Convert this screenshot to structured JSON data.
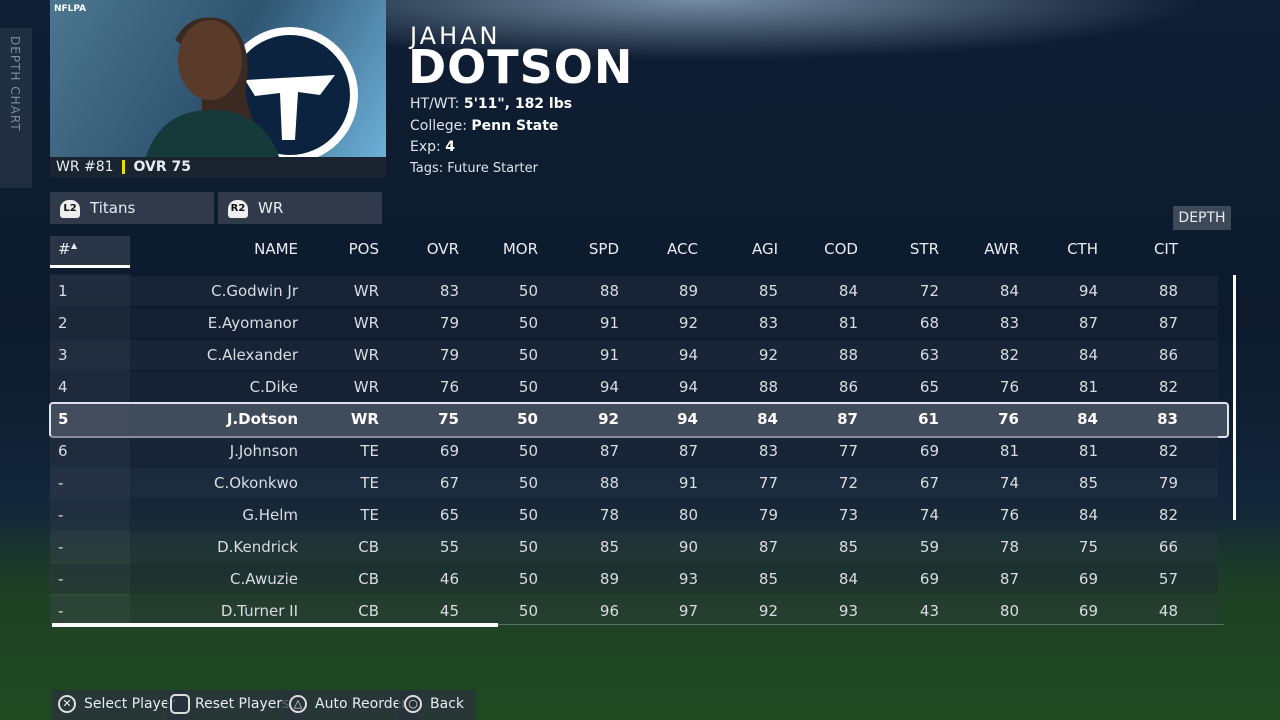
{
  "side_tab": "DEPTH CHART",
  "badge": "NFLPA",
  "player": {
    "first_name": "JAHAN",
    "last_name": "DOTSON",
    "position_number": "WR #81",
    "ovr": "OVR 75",
    "ht_wt_label": "HT/WT:",
    "ht_wt": "5'11\", 182 lbs",
    "college_label": "College:",
    "college": "Penn State",
    "exp_label": "Exp:",
    "exp": "4",
    "tags": "Tags: Future Starter"
  },
  "filters": [
    {
      "button": "L2",
      "label": "Titans"
    },
    {
      "button": "R2",
      "label": "WR"
    }
  ],
  "depth_button": "DEPTH",
  "table": {
    "columns": [
      "#",
      "NAME",
      "POS",
      "OVR",
      "MOR",
      "SPD",
      "ACC",
      "AGI",
      "COD",
      "STR",
      "AWR",
      "CTH",
      "CIT"
    ],
    "selected_row": 4,
    "rows": [
      [
        "1",
        "C.Godwin Jr",
        "WR",
        83,
        50,
        88,
        89,
        85,
        84,
        72,
        84,
        94,
        88
      ],
      [
        "2",
        "E.Ayomanor",
        "WR",
        79,
        50,
        91,
        92,
        83,
        81,
        68,
        83,
        87,
        87
      ],
      [
        "3",
        "C.Alexander",
        "WR",
        79,
        50,
        91,
        94,
        92,
        88,
        63,
        82,
        84,
        86
      ],
      [
        "4",
        "C.Dike",
        "WR",
        76,
        50,
        94,
        94,
        88,
        86,
        65,
        76,
        81,
        82
      ],
      [
        "5",
        "J.Dotson",
        "WR",
        75,
        50,
        92,
        94,
        84,
        87,
        61,
        76,
        84,
        83
      ],
      [
        "6",
        "J.Johnson",
        "TE",
        69,
        50,
        87,
        87,
        83,
        77,
        69,
        81,
        81,
        82
      ],
      [
        "-",
        "C.Okonkwo",
        "TE",
        67,
        50,
        88,
        91,
        77,
        72,
        67,
        74,
        85,
        79
      ],
      [
        "-",
        "G.Helm",
        "TE",
        65,
        50,
        78,
        80,
        79,
        73,
        74,
        76,
        84,
        82
      ],
      [
        "-",
        "D.Kendrick",
        "CB",
        55,
        50,
        85,
        90,
        87,
        85,
        59,
        78,
        75,
        66
      ],
      [
        "-",
        "C.Awuzie",
        "CB",
        46,
        50,
        89,
        93,
        85,
        84,
        69,
        87,
        69,
        57
      ],
      [
        "-",
        "D.Turner II",
        "CB",
        45,
        50,
        96,
        97,
        92,
        93,
        43,
        80,
        69,
        48
      ]
    ]
  },
  "footer": [
    {
      "label": "Select Player"
    },
    {
      "label": "Reset Players"
    },
    {
      "label": "Auto Reorder"
    },
    {
      "label": "Back"
    }
  ]
}
